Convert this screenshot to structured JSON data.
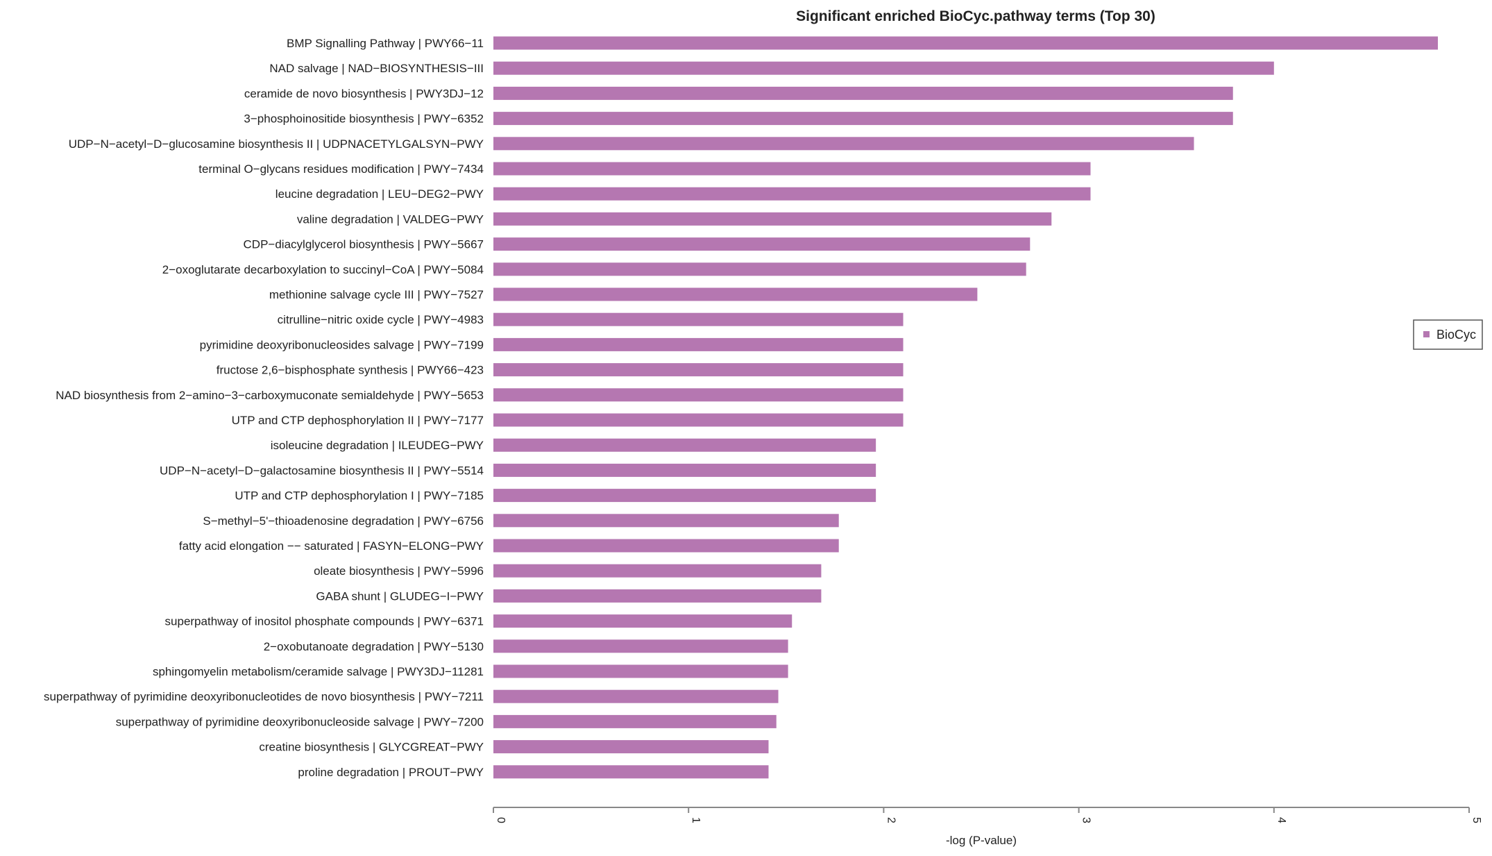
{
  "chart_data": {
    "type": "bar",
    "orientation": "horizontal",
    "title": "Significant enriched BioCyc.pathway terms (Top 30)",
    "xlabel": "-log (P-value)",
    "ylabel": "",
    "xlim": [
      0,
      5
    ],
    "xticks": [
      "0",
      "1",
      "2",
      "3",
      "4",
      "5"
    ],
    "grid": false,
    "legend": {
      "placement": "right",
      "entries": [
        "BioCyc"
      ]
    },
    "bar_color": "#b577b1",
    "series": [
      {
        "name": "BioCyc"
      }
    ],
    "categories": [
      "BMP Signalling Pathway | PWY66−11",
      "NAD salvage | NAD−BIOSYNTHESIS−III",
      "ceramide de novo biosynthesis | PWY3DJ−12",
      "3−phosphoinositide biosynthesis | PWY−6352",
      "UDP−N−acetyl−D−glucosamine biosynthesis II | UDPNACETYLGALSYN−PWY",
      "terminal O−glycans residues modification | PWY−7434",
      "leucine degradation | LEU−DEG2−PWY",
      "valine degradation | VALDEG−PWY",
      "CDP−diacylglycerol biosynthesis | PWY−5667",
      "2−oxoglutarate decarboxylation to succinyl−CoA | PWY−5084",
      "methionine salvage cycle III | PWY−7527",
      "citrulline−nitric oxide cycle | PWY−4983",
      "pyrimidine deoxyribonucleosides salvage | PWY−7199",
      "fructose 2,6−bisphosphate synthesis | PWY66−423",
      "NAD biosynthesis from 2−amino−3−carboxymuconate semialdehyde | PWY−5653",
      "UTP and CTP dephosphorylation II | PWY−7177",
      "isoleucine degradation | ILEUDEG−PWY",
      "UDP−N−acetyl−D−galactosamine biosynthesis II | PWY−5514",
      "UTP and CTP dephosphorylation I | PWY−7185",
      "S−methyl−5'−thioadenosine degradation | PWY−6756",
      "fatty acid elongation −− saturated | FASYN−ELONG−PWY",
      "oleate biosynthesis | PWY−5996",
      "GABA shunt | GLUDEG−I−PWY",
      "superpathway of inositol phosphate compounds | PWY−6371",
      "2−oxobutanoate degradation | PWY−5130",
      "sphingomyelin metabolism/ceramide salvage | PWY3DJ−11281",
      "superpathway of pyrimidine deoxyribonucleotides de novo biosynthesis | PWY−7211",
      "superpathway of pyrimidine deoxyribonucleoside salvage | PWY−7200",
      "creatine biosynthesis | GLYCGREAT−PWY",
      "proline degradation | PROUT−PWY"
    ],
    "values": [
      4.84,
      4.0,
      3.79,
      3.79,
      3.59,
      3.06,
      3.06,
      2.86,
      2.75,
      2.73,
      2.48,
      2.1,
      2.1,
      2.1,
      2.1,
      2.1,
      1.96,
      1.96,
      1.96,
      1.77,
      1.77,
      1.68,
      1.68,
      1.53,
      1.51,
      1.51,
      1.46,
      1.45,
      1.41,
      1.41
    ]
  }
}
